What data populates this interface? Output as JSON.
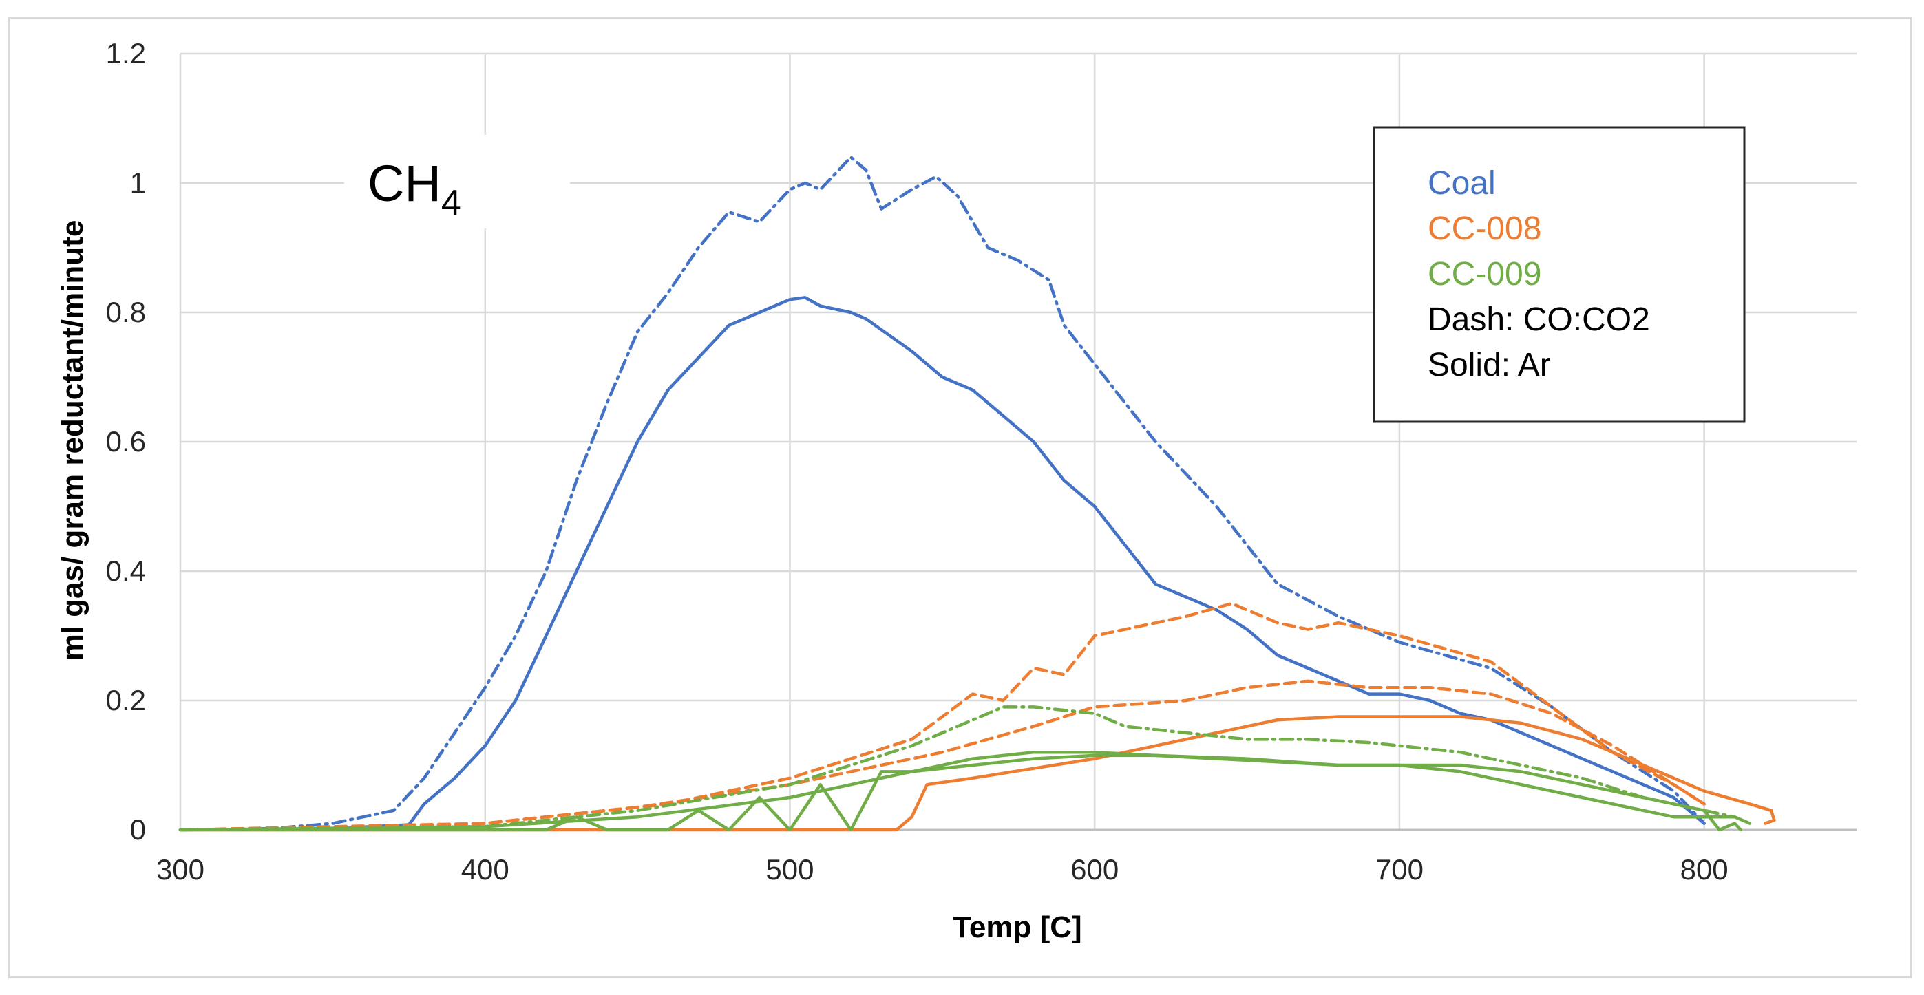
{
  "chart_data": {
    "type": "line",
    "title": "",
    "xlabel": "Temp [C]",
    "ylabel": "ml gas/ gram reductant/minute",
    "xlim": [
      300,
      850
    ],
    "ylim": [
      0,
      1.2
    ],
    "x_ticks": [
      300,
      400,
      500,
      600,
      700,
      800
    ],
    "x_tick_labels": [
      "300",
      "400",
      "500",
      "600",
      "700",
      "800"
    ],
    "y_ticks": [
      0,
      0.2,
      0.4,
      0.6,
      0.8,
      1,
      1.2
    ],
    "y_tick_labels": [
      "0",
      "0.2",
      "0.4",
      "0.6",
      "0.8",
      "1",
      "1.2"
    ],
    "grid": true,
    "annotation": {
      "main": "CH",
      "sub": "4"
    },
    "legend": {
      "placement": "top-right",
      "entries": [
        {
          "label": "Coal",
          "color": "#4472c4"
        },
        {
          "label": "CC-008",
          "color": "#ed7d31"
        },
        {
          "label": "CC-009",
          "color": "#70ad47"
        },
        {
          "label": "Dash: CO:CO2",
          "color": "#000000"
        },
        {
          "label": "Solid: Ar",
          "color": "#000000"
        }
      ]
    },
    "series": [
      {
        "name": "Coal (CO:CO2)",
        "color": "#4472c4",
        "style": "dashdot",
        "x": [
          300,
          330,
          350,
          370,
          380,
          390,
          400,
          410,
          420,
          430,
          440,
          450,
          460,
          470,
          480,
          490,
          500,
          505,
          510,
          520,
          525,
          530,
          540,
          548,
          555,
          565,
          575,
          585,
          590,
          600,
          610,
          620,
          640,
          660,
          680,
          700,
          715,
          730,
          750,
          770,
          790,
          800
        ],
        "y": [
          0,
          0.002,
          0.01,
          0.03,
          0.08,
          0.15,
          0.22,
          0.3,
          0.4,
          0.54,
          0.66,
          0.77,
          0.83,
          0.9,
          0.955,
          0.94,
          0.99,
          1.0,
          0.99,
          1.04,
          1.02,
          0.96,
          0.99,
          1.01,
          0.98,
          0.9,
          0.88,
          0.85,
          0.78,
          0.72,
          0.66,
          0.6,
          0.5,
          0.38,
          0.33,
          0.29,
          0.27,
          0.25,
          0.19,
          0.12,
          0.06,
          0.01
        ]
      },
      {
        "name": "Coal (Ar)",
        "color": "#4472c4",
        "style": "solid",
        "x": [
          300,
          350,
          375,
          380,
          390,
          400,
          410,
          420,
          430,
          440,
          450,
          460,
          470,
          480,
          485,
          490,
          500,
          505,
          510,
          520,
          525,
          540,
          550,
          560,
          570,
          580,
          590,
          600,
          610,
          620,
          640,
          650,
          660,
          670,
          680,
          690,
          700,
          710,
          720,
          730,
          750,
          770,
          790,
          800
        ],
        "y": [
          0,
          0.002,
          0.008,
          0.04,
          0.08,
          0.13,
          0.2,
          0.3,
          0.4,
          0.5,
          0.6,
          0.68,
          0.73,
          0.78,
          0.79,
          0.8,
          0.82,
          0.823,
          0.81,
          0.8,
          0.79,
          0.74,
          0.7,
          0.68,
          0.64,
          0.6,
          0.54,
          0.5,
          0.44,
          0.38,
          0.34,
          0.31,
          0.27,
          0.25,
          0.23,
          0.21,
          0.21,
          0.2,
          0.18,
          0.17,
          0.13,
          0.09,
          0.05,
          0.01
        ]
      },
      {
        "name": "CC-008 (CO:CO2) A",
        "color": "#ed7d31",
        "style": "dashed",
        "x": [
          300,
          350,
          400,
          420,
          440,
          460,
          480,
          500,
          520,
          540,
          560,
          570,
          580,
          590,
          600,
          610,
          630,
          645,
          660,
          670,
          680,
          690,
          700,
          715,
          730,
          750,
          770,
          790,
          800
        ],
        "y": [
          0,
          0.003,
          0.01,
          0.02,
          0.03,
          0.04,
          0.06,
          0.08,
          0.11,
          0.14,
          0.21,
          0.2,
          0.25,
          0.24,
          0.3,
          0.31,
          0.33,
          0.35,
          0.32,
          0.31,
          0.32,
          0.31,
          0.3,
          0.28,
          0.26,
          0.19,
          0.12,
          0.07,
          0.04
        ]
      },
      {
        "name": "CC-008 (CO:CO2) B",
        "color": "#ed7d31",
        "style": "dashed",
        "x": [
          300,
          400,
          450,
          500,
          550,
          580,
          600,
          630,
          650,
          670,
          690,
          710,
          730,
          750,
          770,
          790,
          800
        ],
        "y": [
          0,
          0.01,
          0.035,
          0.07,
          0.12,
          0.16,
          0.19,
          0.2,
          0.22,
          0.23,
          0.22,
          0.22,
          0.21,
          0.18,
          0.13,
          0.07,
          0.04
        ]
      },
      {
        "name": "CC-008 (Ar)",
        "color": "#ed7d31",
        "style": "solid",
        "x": [
          300,
          535,
          540,
          545,
          560,
          580,
          600,
          620,
          640,
          660,
          680,
          700,
          720,
          740,
          760,
          780,
          800,
          815,
          822,
          823,
          820
        ],
        "y": [
          0,
          0,
          0.02,
          0.07,
          0.08,
          0.095,
          0.11,
          0.13,
          0.15,
          0.17,
          0.175,
          0.175,
          0.175,
          0.165,
          0.14,
          0.1,
          0.06,
          0.04,
          0.03,
          0.015,
          0.01
        ]
      },
      {
        "name": "CC-009 (CO:CO2)",
        "color": "#70ad47",
        "style": "dashdot",
        "x": [
          300,
          400,
          450,
          500,
          520,
          540,
          560,
          570,
          580,
          590,
          600,
          610,
          630,
          650,
          670,
          690,
          700,
          720,
          740,
          760,
          780,
          800,
          810
        ],
        "y": [
          0,
          0.005,
          0.03,
          0.07,
          0.1,
          0.13,
          0.17,
          0.19,
          0.19,
          0.185,
          0.18,
          0.16,
          0.15,
          0.14,
          0.14,
          0.135,
          0.13,
          0.12,
          0.1,
          0.08,
          0.05,
          0.03,
          0.02
        ]
      },
      {
        "name": "CC-009 (Ar) A",
        "color": "#70ad47",
        "style": "solid",
        "x": [
          300,
          400,
          450,
          500,
          520,
          540,
          560,
          580,
          600,
          620,
          650,
          680,
          700,
          720,
          740,
          760,
          780,
          790,
          800,
          810,
          815
        ],
        "y": [
          0,
          0.005,
          0.02,
          0.05,
          0.07,
          0.09,
          0.1,
          0.11,
          0.115,
          0.115,
          0.11,
          0.1,
          0.1,
          0.09,
          0.07,
          0.05,
          0.03,
          0.02,
          0.02,
          0.02,
          0.01
        ]
      },
      {
        "name": "CC-009 (Ar) B",
        "color": "#70ad47",
        "style": "solid",
        "x": [
          300,
          420,
          430,
          440,
          450,
          460,
          470,
          480,
          490,
          500,
          510,
          520,
          530,
          540,
          560,
          580,
          600,
          620,
          640,
          660,
          680,
          700,
          720,
          740,
          760,
          780,
          800,
          805,
          810,
          812
        ],
        "y": [
          0,
          0,
          0.02,
          0.0,
          0.0,
          0.0,
          0.03,
          0.0,
          0.05,
          0.0,
          0.07,
          0.0,
          0.09,
          0.09,
          0.11,
          0.12,
          0.12,
          0.115,
          0.11,
          0.105,
          0.1,
          0.1,
          0.1,
          0.09,
          0.07,
          0.05,
          0.03,
          0.0,
          0.01,
          0.0
        ]
      }
    ]
  }
}
